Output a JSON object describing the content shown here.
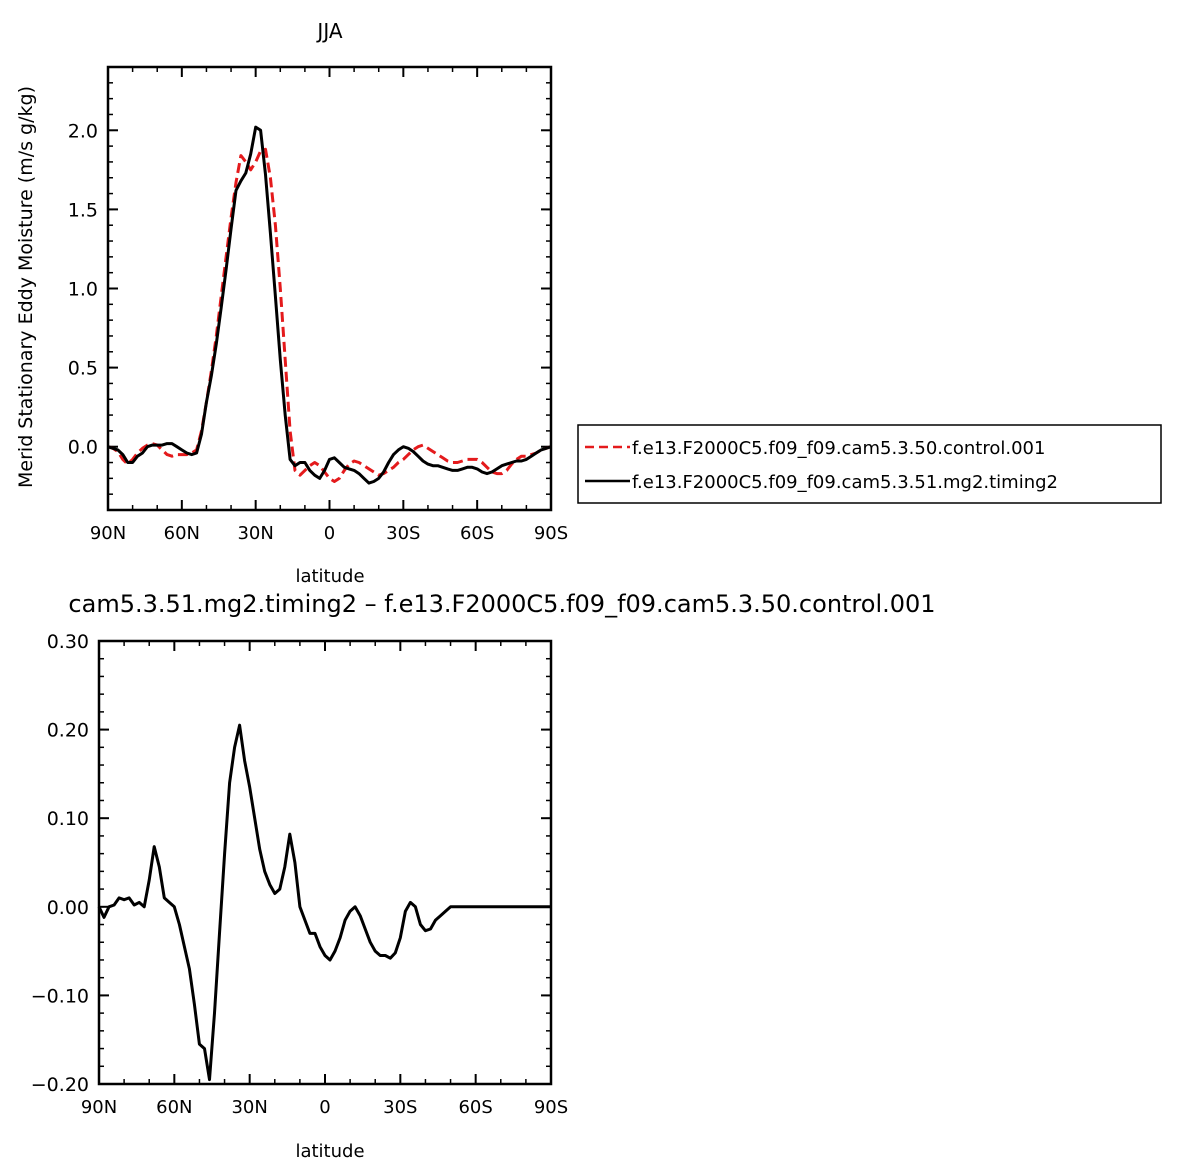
{
  "chart_data": [
    {
      "type": "line",
      "title": "JJA",
      "xlabel": "latitude",
      "ylabel": "Merid Stationary Eddy Moisture (m/s g/kg)",
      "xlim": [
        90,
        -90
      ],
      "ylim": [
        -0.4,
        2.4
      ],
      "x_ticks": [
        90,
        60,
        30,
        0,
        -30,
        -60,
        -90
      ],
      "x_tick_labels": [
        "90N",
        "60N",
        "30N",
        "0",
        "30S",
        "60S",
        "90S"
      ],
      "y_ticks": [
        0,
        0.5,
        1,
        1.5,
        2
      ],
      "y_tick_labels": [
        "0.0",
        "0.5",
        "1.0",
        "1.5",
        "2.0"
      ],
      "legend_position": "right",
      "series": [
        {
          "name": "f.e13.F2000C5.f09_f09.cam5.3.50.control.001",
          "color": "#e41a1c",
          "dash": "dashed",
          "x": [
            90,
            88,
            86,
            84,
            82,
            80,
            78,
            76,
            74,
            72,
            70,
            68,
            66,
            64,
            62,
            60,
            58,
            56,
            54,
            52,
            50,
            48,
            46,
            44,
            42,
            40,
            38,
            36,
            34,
            32,
            30,
            28,
            26,
            24,
            22,
            20,
            18,
            16,
            14,
            12,
            10,
            8,
            6,
            4,
            2,
            0,
            -2,
            -4,
            -6,
            -8,
            -10,
            -12,
            -14,
            -16,
            -18,
            -20,
            -22,
            -24,
            -26,
            -28,
            -30,
            -32,
            -34,
            -36,
            -38,
            -40,
            -42,
            -44,
            -46,
            -48,
            -50,
            -52,
            -54,
            -56,
            -58,
            -60,
            -62,
            -64,
            -66,
            -68,
            -70,
            -72,
            -74,
            -76,
            -78,
            -80,
            -82,
            -84,
            -86,
            -88,
            -90
          ],
          "values": [
            0.0,
            -0.01,
            -0.03,
            -0.08,
            -0.11,
            -0.08,
            -0.04,
            -0.01,
            0.01,
            0.02,
            0.01,
            -0.02,
            -0.05,
            -0.06,
            -0.05,
            -0.05,
            -0.05,
            -0.04,
            -0.02,
            0.1,
            0.28,
            0.48,
            0.7,
            0.95,
            1.2,
            1.45,
            1.67,
            1.84,
            1.8,
            1.75,
            1.8,
            1.87,
            1.88,
            1.7,
            1.4,
            1.0,
            0.55,
            0.1,
            -0.15,
            -0.18,
            -0.15,
            -0.12,
            -0.1,
            -0.12,
            -0.16,
            -0.2,
            -0.22,
            -0.2,
            -0.15,
            -0.11,
            -0.09,
            -0.1,
            -0.12,
            -0.14,
            -0.16,
            -0.18,
            -0.17,
            -0.15,
            -0.13,
            -0.1,
            -0.08,
            -0.05,
            -0.02,
            0.0,
            0.01,
            -0.01,
            -0.03,
            -0.05,
            -0.07,
            -0.09,
            -0.1,
            -0.1,
            -0.09,
            -0.08,
            -0.08,
            -0.08,
            -0.1,
            -0.13,
            -0.16,
            -0.17,
            -0.17,
            -0.15,
            -0.11,
            -0.08,
            -0.06,
            -0.06,
            -0.05,
            -0.04,
            -0.02,
            -0.01,
            0.0
          ]
        },
        {
          "name": "f.e13.F2000C5.f09_f09.cam5.3.51.mg2.timing2",
          "color": "#000000",
          "dash": "solid",
          "x": [
            90,
            88,
            86,
            84,
            82,
            80,
            78,
            76,
            74,
            72,
            70,
            68,
            66,
            64,
            62,
            60,
            58,
            56,
            54,
            52,
            50,
            48,
            46,
            44,
            42,
            40,
            38,
            36,
            34,
            32,
            30,
            28,
            26,
            24,
            22,
            20,
            18,
            16,
            14,
            12,
            10,
            8,
            6,
            4,
            2,
            0,
            -2,
            -4,
            -6,
            -8,
            -10,
            -12,
            -14,
            -16,
            -18,
            -20,
            -22,
            -24,
            -26,
            -28,
            -30,
            -32,
            -34,
            -36,
            -38,
            -40,
            -42,
            -44,
            -46,
            -48,
            -50,
            -52,
            -54,
            -56,
            -58,
            -60,
            -62,
            -64,
            -66,
            -68,
            -70,
            -72,
            -74,
            -76,
            -78,
            -80,
            -82,
            -84,
            -86,
            -88,
            -90
          ],
          "values": [
            0.0,
            -0.01,
            -0.02,
            -0.05,
            -0.1,
            -0.1,
            -0.06,
            -0.04,
            0.0,
            0.01,
            0.01,
            0.01,
            0.02,
            0.02,
            0.0,
            -0.02,
            -0.04,
            -0.05,
            -0.04,
            0.08,
            0.28,
            0.45,
            0.65,
            0.88,
            1.12,
            1.38,
            1.62,
            1.68,
            1.73,
            1.85,
            2.02,
            2.0,
            1.72,
            1.35,
            0.95,
            0.55,
            0.2,
            -0.08,
            -0.12,
            -0.1,
            -0.1,
            -0.15,
            -0.18,
            -0.2,
            -0.15,
            -0.08,
            -0.07,
            -0.1,
            -0.13,
            -0.14,
            -0.15,
            -0.17,
            -0.2,
            -0.23,
            -0.22,
            -0.2,
            -0.16,
            -0.1,
            -0.05,
            -0.02,
            0.0,
            -0.01,
            -0.03,
            -0.06,
            -0.09,
            -0.11,
            -0.12,
            -0.12,
            -0.13,
            -0.14,
            -0.15,
            -0.15,
            -0.14,
            -0.13,
            -0.13,
            -0.14,
            -0.16,
            -0.17,
            -0.16,
            -0.14,
            -0.12,
            -0.11,
            -0.1,
            -0.09,
            -0.09,
            -0.08,
            -0.06,
            -0.04,
            -0.02,
            -0.01,
            0.0
          ]
        }
      ]
    },
    {
      "type": "line",
      "title": "cam5.3.51.mg2.timing2 – f.e13.F2000C5.f09_f09.cam5.3.50.control.001",
      "xlabel": "latitude",
      "ylabel": "",
      "xlim": [
        90,
        -90
      ],
      "ylim": [
        -0.2,
        0.3
      ],
      "x_ticks": [
        90,
        60,
        30,
        0,
        -30,
        -60,
        -90
      ],
      "x_tick_labels": [
        "90N",
        "60N",
        "30N",
        "0",
        "30S",
        "60S",
        "90S"
      ],
      "y_ticks": [
        -0.2,
        -0.1,
        0,
        0.1,
        0.2,
        0.3
      ],
      "y_tick_labels": [
        "−0.20",
        "−0.10",
        "0.00",
        "0.10",
        "0.20",
        "0.30"
      ],
      "series": [
        {
          "color": "#000000",
          "dash": "solid",
          "x": [
            90,
            88,
            86,
            84,
            82,
            80,
            78,
            76,
            74,
            72,
            70,
            68,
            66,
            64,
            62,
            60,
            58,
            56,
            54,
            52,
            50,
            48,
            46,
            44,
            42,
            40,
            38,
            36,
            34,
            32,
            30,
            28,
            26,
            24,
            22,
            20,
            18,
            16,
            14,
            12,
            10,
            8,
            6,
            4,
            2,
            0,
            -2,
            -4,
            -6,
            -8,
            -10,
            -12,
            -14,
            -16,
            -18,
            -20,
            -22,
            -24,
            -26,
            -28,
            -30,
            -32,
            -34,
            -36,
            -38,
            -40,
            -42,
            -44,
            -46,
            -48,
            -50,
            -52,
            -54,
            -56,
            -58,
            -60,
            -62,
            -64,
            -66,
            -68,
            -70,
            -72,
            -74,
            -76,
            -78,
            -80,
            -82,
            -84,
            -86,
            -88,
            -90
          ],
          "values": [
            0.0,
            -0.012,
            0.0,
            0.002,
            0.01,
            0.008,
            0.01,
            0.002,
            0.005,
            0.0,
            0.03,
            0.068,
            0.045,
            0.01,
            0.005,
            0.0,
            -0.02,
            -0.045,
            -0.07,
            -0.11,
            -0.155,
            -0.16,
            -0.195,
            -0.12,
            -0.03,
            0.06,
            0.14,
            0.18,
            0.205,
            0.165,
            0.135,
            0.1,
            0.065,
            0.04,
            0.025,
            0.015,
            0.02,
            0.045,
            0.082,
            0.05,
            0.0,
            -0.015,
            -0.03,
            -0.03,
            -0.045,
            -0.055,
            -0.06,
            -0.05,
            -0.035,
            -0.015,
            -0.005,
            0.0,
            -0.01,
            -0.025,
            -0.04,
            -0.05,
            -0.055,
            -0.055,
            -0.058,
            -0.052,
            -0.035,
            -0.005,
            0.005,
            0.0,
            -0.02,
            -0.027,
            -0.025,
            -0.015,
            -0.01,
            -0.005,
            0.0,
            0.0,
            0.0,
            0.0,
            0.0,
            0.0,
            0.0,
            0.0,
            0.0,
            0.0,
            0.0,
            0.0,
            0.0,
            0.0,
            0.0,
            0.0,
            0.0,
            0.0,
            0.0,
            0.0,
            0.0
          ]
        }
      ]
    }
  ]
}
